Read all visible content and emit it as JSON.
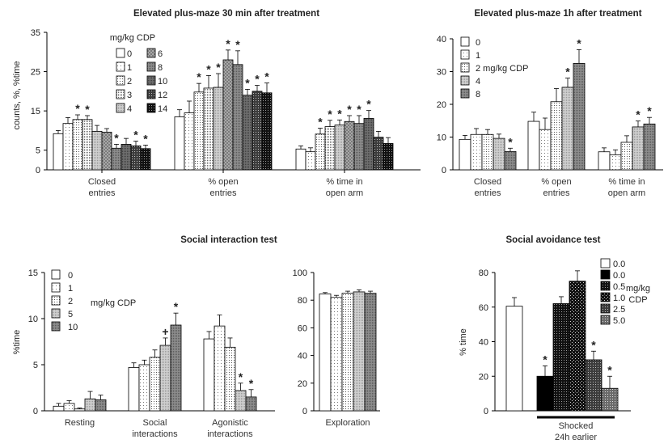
{
  "chart_data": [
    {
      "id": "p1",
      "type": "bar",
      "title": "Elevated plus-maze 30 min after treatment",
      "ylabel": "counts, %, %time",
      "ylim": [
        0,
        35
      ],
      "yticks": [
        0,
        5,
        15,
        25,
        35
      ],
      "legend_title": "mg/kg CDP",
      "categories": [
        "Closed\nentries",
        "% open\nentries",
        "% time in\nopen arm"
      ],
      "series": [
        {
          "name": "0",
          "pattern": "white",
          "values": [
            9.2,
            13.5,
            5.3
          ],
          "errors": [
            0.8,
            1.8,
            0.8
          ],
          "sig": [
            false,
            false,
            false
          ]
        },
        {
          "name": "1",
          "pattern": "dots-light",
          "values": [
            11.8,
            14.5,
            4.6
          ],
          "errors": [
            1.5,
            3.0,
            1.0
          ],
          "sig": [
            false,
            false,
            false
          ]
        },
        {
          "name": "2",
          "pattern": "dots-medium",
          "values": [
            12.8,
            19.8,
            9.1
          ],
          "errors": [
            1.2,
            2.2,
            1.5
          ],
          "sig": [
            true,
            true,
            true
          ]
        },
        {
          "name": "3",
          "pattern": "dots-dense",
          "values": [
            12.8,
            20.8,
            11.0
          ],
          "errors": [
            1.0,
            3.2,
            1.6
          ],
          "sig": [
            true,
            true,
            true
          ]
        },
        {
          "name": "4",
          "pattern": "gray-light",
          "values": [
            9.8,
            21.0,
            11.4
          ],
          "errors": [
            1.5,
            3.5,
            1.3
          ],
          "sig": [
            false,
            true,
            true
          ]
        },
        {
          "name": "6",
          "pattern": "gray-check",
          "values": [
            9.6,
            28.0,
            12.3
          ],
          "errors": [
            0.9,
            2.5,
            1.5
          ],
          "sig": [
            false,
            true,
            true
          ]
        },
        {
          "name": "8",
          "pattern": "gray-mid",
          "values": [
            5.5,
            26.8,
            11.8
          ],
          "errors": [
            1.0,
            3.5,
            2.0
          ],
          "sig": [
            true,
            true,
            true
          ]
        },
        {
          "name": "10",
          "pattern": "gray-dark",
          "values": [
            6.5,
            19.0,
            13.1
          ],
          "errors": [
            1.5,
            1.5,
            2.0
          ],
          "sig": [
            false,
            true,
            true
          ]
        },
        {
          "name": "12",
          "pattern": "dark-dots",
          "values": [
            6.1,
            20.0,
            8.3
          ],
          "errors": [
            1.2,
            1.5,
            1.5
          ],
          "sig": [
            true,
            true,
            false
          ]
        },
        {
          "name": "14",
          "pattern": "black-dots",
          "values": [
            5.4,
            19.6,
            6.7
          ],
          "errors": [
            0.9,
            2.5,
            1.5
          ],
          "sig": [
            true,
            true,
            false
          ]
        }
      ]
    },
    {
      "id": "p2",
      "type": "bar",
      "title": "Elevated plus-maze 1h after treatment",
      "ylabel": "",
      "ylim": [
        0,
        40
      ],
      "yticks": [
        0,
        10,
        20,
        30,
        40
      ],
      "legend_title": "",
      "categories": [
        "Closed\nentries",
        "% open\nentries",
        "% time in\nopen arm"
      ],
      "series": [
        {
          "name": "0",
          "pattern": "white",
          "values": [
            9.3,
            14.8,
            5.5
          ],
          "errors": [
            1.2,
            2.8,
            1.2
          ],
          "sig": [
            false,
            false,
            false
          ]
        },
        {
          "name": "1",
          "pattern": "dots-light",
          "values": [
            10.8,
            12.3,
            4.6
          ],
          "errors": [
            1.8,
            3.5,
            1.5
          ],
          "sig": [
            false,
            false,
            false
          ]
        },
        {
          "name": "2 mg/kg CDP",
          "pattern": "dots-medium",
          "values": [
            10.8,
            20.8,
            8.4
          ],
          "errors": [
            1.5,
            4.0,
            2.0
          ],
          "sig": [
            false,
            false,
            false
          ]
        },
        {
          "name": "4",
          "pattern": "gray-light",
          "values": [
            9.6,
            25.2,
            13.1
          ],
          "errors": [
            1.3,
            2.8,
            1.8
          ],
          "sig": [
            false,
            true,
            true
          ]
        },
        {
          "name": "8",
          "pattern": "gray-mid",
          "values": [
            5.6,
            32.5,
            14.0
          ],
          "errors": [
            1.0,
            4.2,
            2.0
          ],
          "sig": [
            true,
            true,
            true
          ]
        }
      ]
    },
    {
      "id": "p3",
      "type": "bar",
      "title": "Social interaction test",
      "ylabel": "%time",
      "ylim": [
        0,
        15
      ],
      "yticks": [
        0,
        5,
        10,
        15
      ],
      "legend_title": "",
      "legend_note": "mg/kg CDP",
      "categories": [
        "Resting",
        "Social\ninteractions",
        "Agonistic\ninteractions"
      ],
      "series": [
        {
          "name": "0",
          "pattern": "white",
          "values": [
            0.5,
            4.7,
            7.8
          ],
          "errors": [
            0.3,
            0.5,
            0.8
          ],
          "marks": [
            "",
            "",
            ""
          ]
        },
        {
          "name": "1",
          "pattern": "dots-light",
          "values": [
            0.8,
            5.0,
            9.2
          ],
          "errors": [
            0.3,
            0.5,
            1.2
          ],
          "marks": [
            "",
            "",
            ""
          ]
        },
        {
          "name": "2",
          "pattern": "dots-medium",
          "values": [
            0.2,
            5.8,
            6.9
          ],
          "errors": [
            0.1,
            0.8,
            1.0
          ],
          "marks": [
            "",
            "",
            ""
          ]
        },
        {
          "name": "5",
          "pattern": "gray-light",
          "values": [
            1.3,
            7.1,
            2.2
          ],
          "errors": [
            0.8,
            0.8,
            0.8
          ],
          "marks": [
            "",
            "+",
            "*"
          ]
        },
        {
          "name": "10",
          "pattern": "gray-mid",
          "values": [
            1.2,
            9.3,
            1.5
          ],
          "errors": [
            0.5,
            1.3,
            0.8
          ],
          "marks": [
            "",
            "*",
            "*"
          ]
        }
      ]
    },
    {
      "id": "p4",
      "type": "bar",
      "title": "",
      "ylabel": "",
      "ylim": [
        0,
        100
      ],
      "yticks": [
        0,
        20,
        40,
        60,
        80,
        100
      ],
      "categories": [
        "Exploration"
      ],
      "series": [
        {
          "name": "0",
          "pattern": "white",
          "values": [
            84.5
          ],
          "errors": [
            1.0
          ]
        },
        {
          "name": "1",
          "pattern": "dots-light",
          "values": [
            82.0
          ],
          "errors": [
            1.5
          ]
        },
        {
          "name": "2",
          "pattern": "dots-medium",
          "values": [
            85.0
          ],
          "errors": [
            1.5
          ]
        },
        {
          "name": "5",
          "pattern": "gray-light",
          "values": [
            86.0
          ],
          "errors": [
            1.5
          ]
        },
        {
          "name": "10",
          "pattern": "gray-mid",
          "values": [
            85.0
          ],
          "errors": [
            1.5
          ]
        }
      ]
    },
    {
      "id": "p5",
      "type": "bar",
      "title": "Social avoidance test",
      "ylabel": "% time",
      "ylim": [
        0,
        80
      ],
      "yticks": [
        0,
        20,
        40,
        60,
        80
      ],
      "legend_note": "mg/kg\nCDP",
      "group_label": "Shocked\n24h earlier",
      "bars": [
        {
          "name": "0.0",
          "pattern": "white",
          "value": 60.5,
          "error": 5.0,
          "sig": false
        },
        {
          "name": "0.0",
          "pattern": "black",
          "value": 20.0,
          "error": 6.0,
          "sig": true
        },
        {
          "name": "0.5",
          "pattern": "black-dots",
          "value": 62.0,
          "error": 4.0,
          "sig": false
        },
        {
          "name": "1.0",
          "pattern": "black-dots2",
          "value": 75.0,
          "error": 6.0,
          "sig": false
        },
        {
          "name": "2.5",
          "pattern": "dark-dots",
          "value": 29.5,
          "error": 5.0,
          "sig": true
        },
        {
          "name": "5.0",
          "pattern": "gray-dots",
          "value": 13.0,
          "error": 7.0,
          "sig": true
        }
      ]
    }
  ]
}
